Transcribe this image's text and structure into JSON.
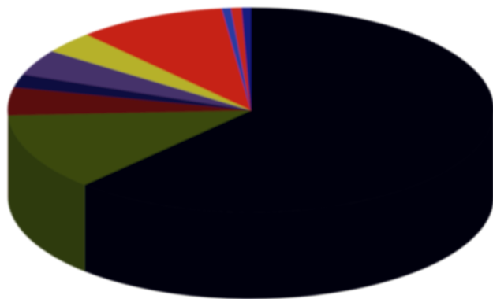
{
  "chart_data": {
    "type": "pie",
    "title": "",
    "labels": [],
    "legend": "none",
    "slices": [
      {
        "value": 62.0,
        "color": "#04030d"
      },
      {
        "value": 12.2,
        "color": "#3a4a10"
      },
      {
        "value": 4.4,
        "color": "#5a0810"
      },
      {
        "value": 2.1,
        "color": "#0c1040"
      },
      {
        "value": 4.1,
        "color": "#45306a"
      },
      {
        "value": 3.4,
        "color": "#b6b12a"
      },
      {
        "value": 9.9,
        "color": "#c62418"
      },
      {
        "value": 0.6,
        "color": "#2a3aa0"
      },
      {
        "value": 0.7,
        "color": "#c2281c"
      },
      {
        "value": 0.6,
        "color": "#181a80"
      }
    ]
  }
}
